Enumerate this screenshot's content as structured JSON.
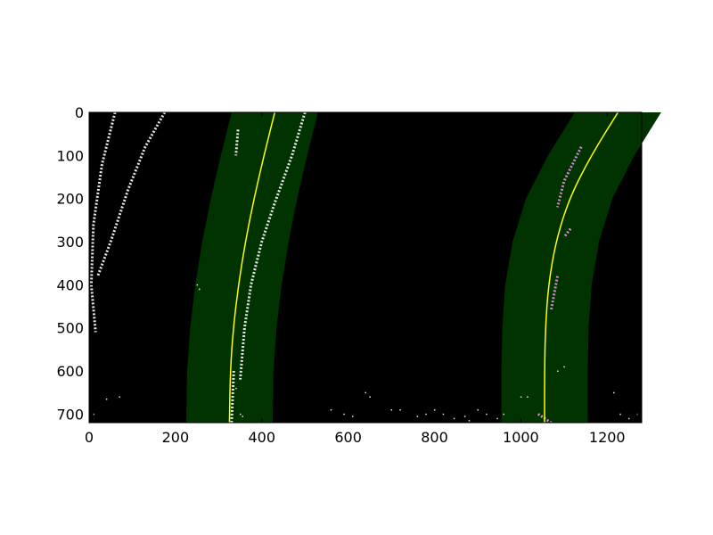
{
  "colors": {
    "background": "#000000",
    "lane_band": "#003300",
    "fit_line": "#ffff00",
    "pixels_white": "#e6e6e6",
    "pixels_magenta": "#cc88cc"
  },
  "chart_data": {
    "type": "line",
    "title": "",
    "xlabel": "",
    "ylabel": "",
    "xlim": [
      0,
      1280
    ],
    "ylim": [
      720,
      0
    ],
    "y_inverted": true,
    "grid": false,
    "legend": "none",
    "x_ticks": [
      0,
      200,
      400,
      600,
      800,
      1000,
      1200
    ],
    "y_ticks": [
      0,
      100,
      200,
      300,
      400,
      500,
      600,
      700
    ],
    "x_tick_labels": [
      "0",
      "200",
      "400",
      "600",
      "800",
      "1000",
      "1200"
    ],
    "y_tick_labels": [
      "0",
      "100",
      "200",
      "300",
      "400",
      "500",
      "600",
      "700"
    ],
    "lane_margin": 100,
    "series": [
      {
        "x": [
          430,
          405,
          382,
          362,
          346,
          334,
          327,
          325
        ],
        "y": [
          0,
          100,
          200,
          300,
          400,
          500,
          600,
          720
        ]
      },
      {
        "x": [
          1225,
          1163,
          1112,
          1081,
          1064,
          1057,
          1055,
          1055
        ],
        "y": [
          0,
          100,
          200,
          300,
          400,
          500,
          600,
          720
        ]
      }
    ],
    "pixel_segments": [
      {
        "points": [
          [
            60,
            0
          ],
          [
            30,
            120
          ],
          [
            10,
            260
          ],
          [
            5,
            400
          ],
          [
            15,
            510
          ]
        ],
        "color": "white"
      },
      {
        "points": [
          [
            175,
            0
          ],
          [
            130,
            80
          ],
          [
            90,
            180
          ],
          [
            50,
            300
          ],
          [
            20,
            380
          ]
        ],
        "color": "white"
      },
      {
        "points": [
          [
            500,
            0
          ],
          [
            470,
            100
          ],
          [
            430,
            210
          ],
          [
            400,
            300
          ],
          [
            375,
            400
          ],
          [
            360,
            500
          ],
          [
            350,
            620
          ]
        ],
        "color": "white"
      },
      {
        "points": [
          [
            345,
            40
          ],
          [
            340,
            100
          ]
        ],
        "color": "white"
      },
      {
        "points": [
          [
            335,
            600
          ],
          [
            330,
            720
          ]
        ],
        "color": "white"
      },
      {
        "points": [
          [
            1140,
            80
          ],
          [
            1100,
            160
          ],
          [
            1085,
            220
          ]
        ],
        "color": "magenta"
      },
      {
        "points": [
          [
            1115,
            270
          ],
          [
            1100,
            290
          ]
        ],
        "color": "magenta"
      },
      {
        "points": [
          [
            1085,
            380
          ],
          [
            1070,
            460
          ]
        ],
        "color": "magenta"
      },
      {
        "points": [
          [
            1040,
            700
          ],
          [
            1070,
            720
          ]
        ],
        "color": "magenta"
      }
    ],
    "noise_points": [
      [
        250,
        400
      ],
      [
        255,
        410
      ],
      [
        340,
        640
      ],
      [
        350,
        700
      ],
      [
        355,
        705
      ],
      [
        560,
        690
      ],
      [
        640,
        650
      ],
      [
        650,
        660
      ],
      [
        700,
        690
      ],
      [
        720,
        690
      ],
      [
        780,
        700
      ],
      [
        800,
        690
      ],
      [
        820,
        700
      ],
      [
        845,
        710
      ],
      [
        870,
        705
      ],
      [
        900,
        690
      ],
      [
        920,
        700
      ],
      [
        945,
        710
      ],
      [
        960,
        700
      ],
      [
        1000,
        660
      ],
      [
        1015,
        660
      ],
      [
        1085,
        600
      ],
      [
        1100,
        590
      ],
      [
        1215,
        650
      ],
      [
        1230,
        700
      ],
      [
        1250,
        710
      ],
      [
        1270,
        700
      ],
      [
        40,
        665
      ],
      [
        70,
        660
      ],
      [
        10,
        700
      ],
      [
        25,
        720
      ],
      [
        590,
        700
      ],
      [
        610,
        705
      ],
      [
        760,
        705
      ],
      [
        880,
        715
      ],
      [
        930,
        720
      ]
    ]
  }
}
